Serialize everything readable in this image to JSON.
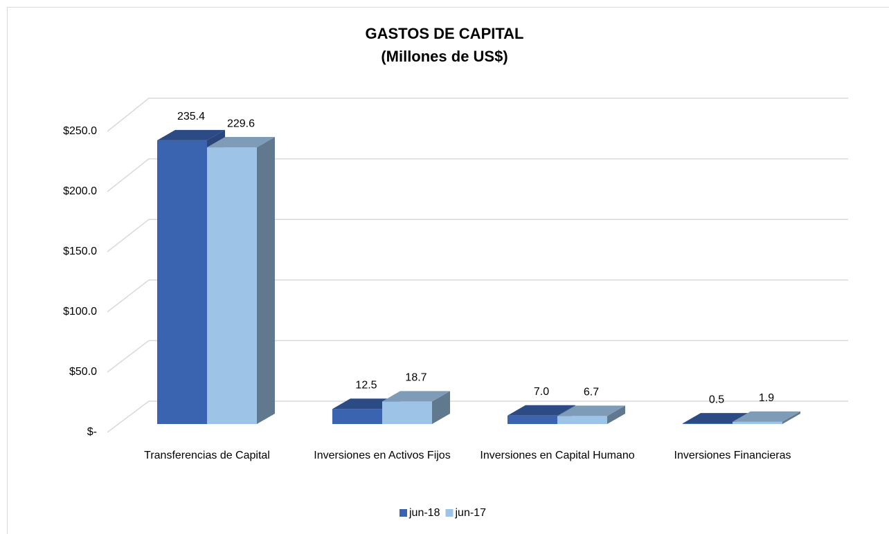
{
  "chart_data": {
    "type": "bar3d",
    "title": "GASTOS DE CAPITAL",
    "subtitle": "(Millones de US$)",
    "categories": [
      "Transferencias de Capital",
      "Inversiones en Activos Fijos",
      "Inversiones en Capital Humano",
      "Inversiones Financieras"
    ],
    "series": [
      {
        "name": "jun-18",
        "color": "#3a63b0",
        "values": [
          235.4,
          12.5,
          7.0,
          0.5
        ],
        "value_labels": [
          "235.4",
          "12.5",
          "7.0",
          "0.5"
        ]
      },
      {
        "name": "jun-17",
        "color": "#9dc3e6",
        "values": [
          229.6,
          18.7,
          6.7,
          1.9
        ],
        "value_labels": [
          "229.6",
          "18.7",
          "6.7",
          "1.9"
        ]
      }
    ],
    "ylim": [
      0,
      250
    ],
    "yticks": [
      {
        "value": 0,
        "label": "$-"
      },
      {
        "value": 50,
        "label": "$50.0"
      },
      {
        "value": 100,
        "label": "$100.0"
      },
      {
        "value": 150,
        "label": "$150.0"
      },
      {
        "value": 200,
        "label": "$200.0"
      },
      {
        "value": 250,
        "label": "$250.0"
      }
    ],
    "grid": true,
    "legend": "bottom"
  }
}
